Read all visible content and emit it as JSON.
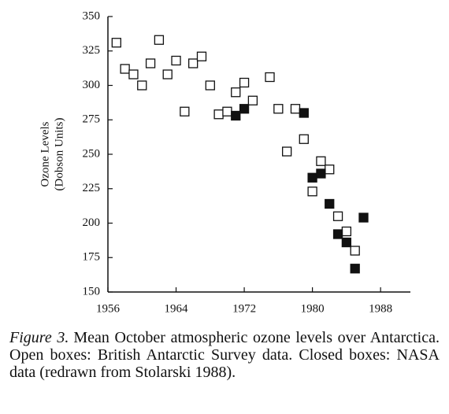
{
  "chart_data": {
    "type": "scatter",
    "y_label_lines": [
      "Ozone Levels",
      "(Dobson Units)"
    ],
    "xlim": [
      1956,
      1991.5
    ],
    "xticks": [
      1956,
      1964,
      1972,
      1980,
      1988
    ],
    "ylim": [
      150,
      350
    ],
    "yticks": [
      150,
      175,
      200,
      225,
      250,
      275,
      300,
      325,
      350
    ],
    "series": [
      {
        "marker": "open",
        "color": "#111111",
        "x": [
          1957,
          1958,
          1959,
          1960,
          1961,
          1962,
          1963,
          1964,
          1965,
          1966,
          1967,
          1968,
          1969,
          1970,
          1971,
          1972,
          1973,
          1975,
          1976,
          1977,
          1978,
          1979,
          1980,
          1981,
          1982,
          1983,
          1984,
          1985
        ],
        "values": [
          331,
          312,
          308,
          300,
          316,
          333,
          308,
          318,
          281,
          316,
          321,
          300,
          279,
          281,
          295,
          302,
          289,
          306,
          283,
          252,
          283,
          261,
          223,
          245,
          239,
          205,
          194,
          180
        ]
      },
      {
        "marker": "filled",
        "color": "#111111",
        "x": [
          1971,
          1972,
          1979,
          1980,
          1981,
          1982,
          1983,
          1984,
          1985,
          1986
        ],
        "values": [
          278,
          283,
          280,
          233,
          236,
          214,
          192,
          186,
          167,
          204
        ]
      }
    ],
    "caption": {
      "label": "Figure 3.",
      "text": "Mean October atmospheric ozone levels over Antarctica. Open boxes: British Antarctic Survey data. Closed boxes: NASA data (redrawn from Stolarski 1988)."
    }
  }
}
